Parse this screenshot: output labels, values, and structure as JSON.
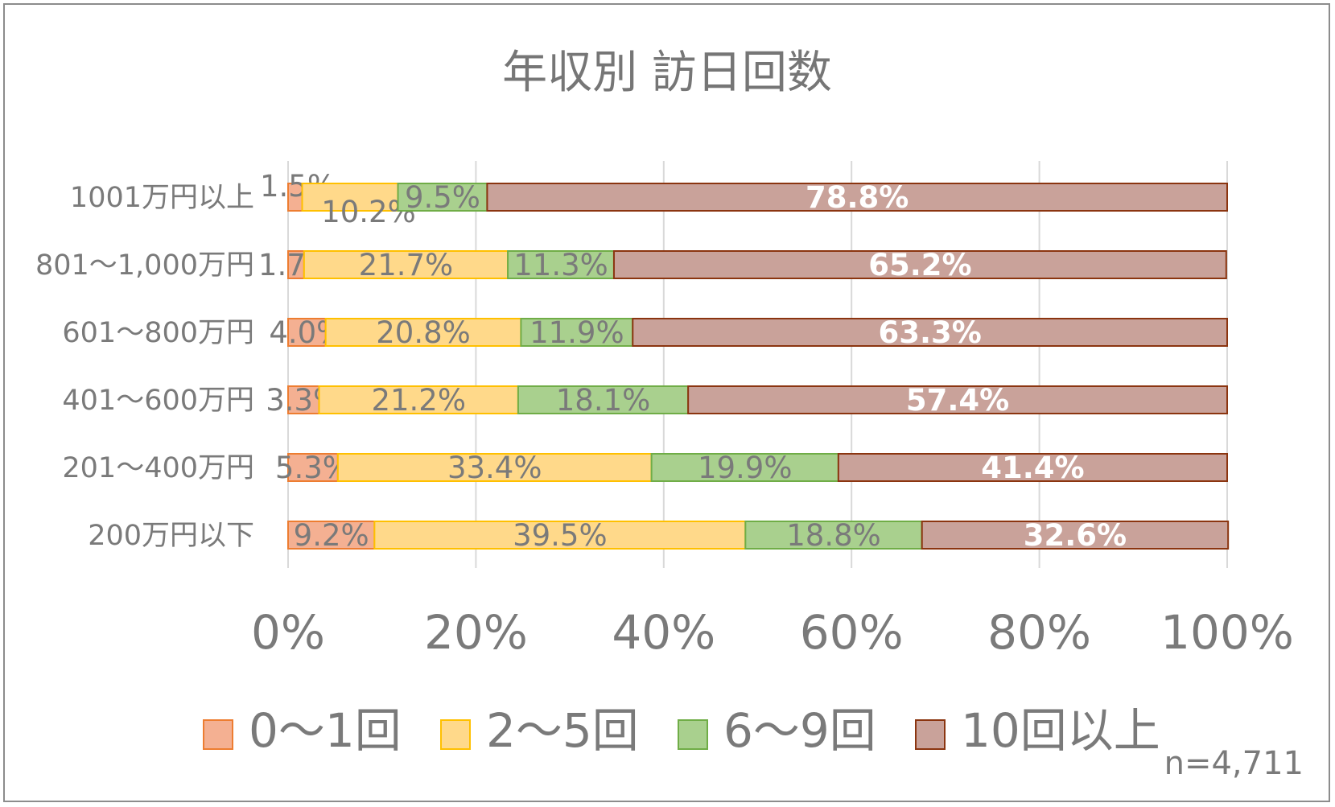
{
  "chart_data": {
    "type": "bar",
    "orientation": "horizontal",
    "stacked": "percent",
    "title": "年収別 訪日回数",
    "categories": [
      "1001万円以上",
      "801～1,000万円",
      "601～800万円",
      "401～600万円",
      "201～400万円",
      "200万円以下"
    ],
    "series": [
      {
        "name": "0～1回",
        "color": "#f4b092",
        "edge": "#ed7d31",
        "values": [
          1.5,
          1.7,
          4.0,
          3.3,
          5.3,
          9.2
        ],
        "labels": [
          "1.5%",
          "1.7%",
          "4.0%",
          "3.3%",
          "5.3%",
          "9.2%"
        ]
      },
      {
        "name": "2～5回",
        "color": "#ffd98a",
        "edge": "#ffc000",
        "values": [
          10.2,
          21.7,
          20.8,
          21.2,
          33.4,
          39.5
        ],
        "labels": [
          "10.2%",
          "21.7%",
          "20.8%",
          "21.2%",
          "33.4%",
          "39.5%"
        ]
      },
      {
        "name": "6～9回",
        "color": "#a9d08e",
        "edge": "#70ad47",
        "values": [
          9.5,
          11.3,
          11.9,
          18.1,
          19.9,
          18.8
        ],
        "labels": [
          "9.5%",
          "11.3%",
          "11.9%",
          "18.1%",
          "19.9%",
          "18.8%"
        ]
      },
      {
        "name": "10回以上",
        "color": "#c9a29a",
        "edge": "#8b3510",
        "values": [
          78.8,
          65.2,
          63.3,
          57.4,
          41.4,
          32.6
        ],
        "labels": [
          "78.8%",
          "65.2%",
          "63.3%",
          "57.4%",
          "41.4%",
          "32.6%"
        ]
      }
    ],
    "xticks": [
      "0%",
      "20%",
      "40%",
      "60%",
      "80%",
      "100%"
    ],
    "xlim": [
      0,
      100
    ],
    "grid": "vertical",
    "legend": "bottom",
    "note": "n=4,711"
  }
}
